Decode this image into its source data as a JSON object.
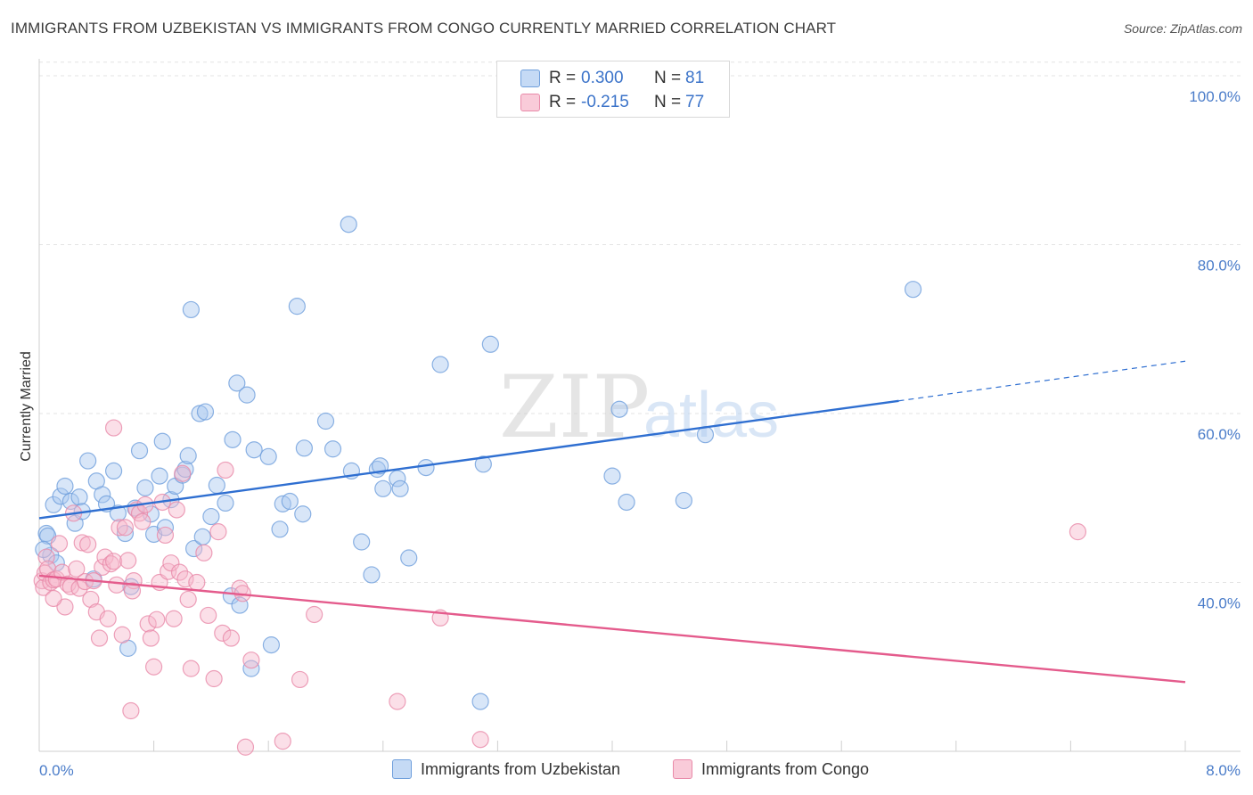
{
  "header": {
    "title": "IMMIGRANTS FROM UZBEKISTAN VS IMMIGRANTS FROM CONGO CURRENTLY MARRIED CORRELATION CHART",
    "source": "Source: ZipAtlas.com"
  },
  "watermark": {
    "zip": "ZIP",
    "atlas": "atlas"
  },
  "legend": {
    "r_label": "R =",
    "n_label": "N =",
    "series": [
      {
        "name": "Immigrants from Uzbekistan",
        "r": "0.300",
        "n": "81",
        "color": "#a9c8f0",
        "stroke": "#6f9fdc"
      },
      {
        "name": "Immigrants from Congo",
        "r": "-0.215",
        "n": "77",
        "color": "#f6b8cb",
        "stroke": "#e98aa9"
      }
    ]
  },
  "chart_data": {
    "type": "scatter",
    "title": "IMMIGRANTS FROM UZBEKISTAN VS IMMIGRANTS FROM CONGO CURRENTLY MARRIED CORRELATION CHART",
    "xlabel": "",
    "ylabel": "Currently Married",
    "xlim": [
      0,
      8
    ],
    "ylim": [
      20,
      102
    ],
    "x_tick_labels": [
      "0.0%",
      "8.0%"
    ],
    "y_ticks": [
      40,
      60,
      80,
      100
    ],
    "y_tick_labels": [
      "40.0%",
      "60.0%",
      "80.0%",
      "100.0%"
    ],
    "series": [
      {
        "name": "Immigrants from Uzbekistan",
        "color": "#a9c8f0",
        "stroke": "#6f9fdc",
        "trend_color": "#2f6fd1",
        "trend": {
          "x0": 0.0,
          "y0": 47.6,
          "x1": 6.0,
          "y1": 61.5,
          "dashed_to_x": 8.0,
          "dashed_to_y": 66.2
        },
        "points": [
          [
            0.05,
            45.8
          ],
          [
            0.06,
            45.5
          ],
          [
            0.08,
            43.2
          ],
          [
            0.1,
            49.2
          ],
          [
            0.12,
            42.3
          ],
          [
            0.15,
            50.2
          ],
          [
            0.18,
            51.4
          ],
          [
            0.22,
            49.6
          ],
          [
            0.25,
            47.0
          ],
          [
            0.28,
            50.1
          ],
          [
            0.3,
            48.4
          ],
          [
            0.34,
            54.4
          ],
          [
            0.38,
            40.4
          ],
          [
            0.4,
            52.0
          ],
          [
            0.44,
            50.4
          ],
          [
            0.47,
            49.3
          ],
          [
            0.52,
            53.2
          ],
          [
            0.55,
            48.2
          ],
          [
            0.6,
            45.8
          ],
          [
            0.62,
            32.2
          ],
          [
            0.64,
            39.5
          ],
          [
            0.67,
            48.8
          ],
          [
            0.7,
            55.6
          ],
          [
            0.74,
            51.2
          ],
          [
            0.78,
            48.1
          ],
          [
            0.8,
            45.7
          ],
          [
            0.84,
            52.6
          ],
          [
            0.86,
            56.7
          ],
          [
            0.88,
            46.5
          ],
          [
            0.92,
            49.8
          ],
          [
            0.95,
            51.4
          ],
          [
            1.0,
            52.7
          ],
          [
            1.02,
            53.4
          ],
          [
            1.04,
            55.0
          ],
          [
            1.06,
            72.3
          ],
          [
            1.08,
            44.0
          ],
          [
            1.12,
            60.0
          ],
          [
            1.14,
            45.4
          ],
          [
            1.16,
            60.2
          ],
          [
            1.2,
            47.8
          ],
          [
            1.24,
            51.5
          ],
          [
            1.3,
            49.4
          ],
          [
            1.34,
            38.4
          ],
          [
            1.35,
            56.9
          ],
          [
            1.38,
            63.6
          ],
          [
            1.4,
            37.3
          ],
          [
            1.45,
            62.2
          ],
          [
            1.48,
            29.8
          ],
          [
            1.5,
            55.7
          ],
          [
            1.6,
            54.9
          ],
          [
            1.62,
            32.6
          ],
          [
            1.68,
            46.3
          ],
          [
            1.7,
            49.3
          ],
          [
            1.75,
            49.6
          ],
          [
            1.8,
            72.7
          ],
          [
            1.84,
            48.1
          ],
          [
            1.85,
            55.9
          ],
          [
            2.0,
            59.1
          ],
          [
            2.05,
            55.8
          ],
          [
            2.16,
            82.4
          ],
          [
            2.18,
            53.2
          ],
          [
            2.25,
            44.8
          ],
          [
            2.32,
            40.9
          ],
          [
            2.36,
            53.4
          ],
          [
            2.38,
            53.8
          ],
          [
            2.4,
            51.1
          ],
          [
            2.5,
            52.3
          ],
          [
            2.52,
            51.1
          ],
          [
            2.58,
            42.9
          ],
          [
            2.7,
            53.6
          ],
          [
            2.8,
            65.8
          ],
          [
            3.08,
            25.9
          ],
          [
            3.1,
            54.0
          ],
          [
            3.15,
            68.2
          ],
          [
            4.0,
            52.6
          ],
          [
            4.05,
            60.5
          ],
          [
            4.1,
            49.5
          ],
          [
            4.5,
            49.7
          ],
          [
            4.65,
            57.5
          ],
          [
            6.1,
            74.7
          ],
          [
            0.03,
            43.9
          ]
        ]
      },
      {
        "name": "Immigrants from Congo",
        "color": "#f6b8cb",
        "stroke": "#e98aa9",
        "trend_color": "#e45b8c",
        "trend": {
          "x0": 0.0,
          "y0": 40.8,
          "x1": 8.0,
          "y1": 28.2
        },
        "points": [
          [
            0.02,
            40.2
          ],
          [
            0.03,
            39.4
          ],
          [
            0.04,
            41.1
          ],
          [
            0.05,
            43.0
          ],
          [
            0.06,
            41.6
          ],
          [
            0.08,
            40.0
          ],
          [
            0.1,
            40.3
          ],
          [
            0.12,
            40.4
          ],
          [
            0.14,
            44.6
          ],
          [
            0.16,
            41.2
          ],
          [
            0.18,
            37.1
          ],
          [
            0.2,
            39.8
          ],
          [
            0.22,
            39.5
          ],
          [
            0.24,
            48.2
          ],
          [
            0.26,
            41.6
          ],
          [
            0.28,
            39.3
          ],
          [
            0.3,
            44.7
          ],
          [
            0.32,
            40.1
          ],
          [
            0.34,
            44.5
          ],
          [
            0.36,
            38.0
          ],
          [
            0.38,
            40.2
          ],
          [
            0.4,
            36.5
          ],
          [
            0.42,
            33.4
          ],
          [
            0.44,
            41.8
          ],
          [
            0.46,
            43.0
          ],
          [
            0.48,
            35.7
          ],
          [
            0.5,
            42.2
          ],
          [
            0.52,
            42.5
          ],
          [
            0.52,
            58.3
          ],
          [
            0.54,
            39.7
          ],
          [
            0.56,
            46.5
          ],
          [
            0.58,
            33.8
          ],
          [
            0.6,
            46.5
          ],
          [
            0.62,
            42.6
          ],
          [
            0.64,
            24.8
          ],
          [
            0.66,
            40.2
          ],
          [
            0.68,
            48.6
          ],
          [
            0.7,
            48.2
          ],
          [
            0.72,
            47.2
          ],
          [
            0.74,
            49.2
          ],
          [
            0.76,
            35.1
          ],
          [
            0.78,
            33.4
          ],
          [
            0.8,
            30.0
          ],
          [
            0.82,
            35.6
          ],
          [
            0.84,
            40.0
          ],
          [
            0.86,
            49.5
          ],
          [
            0.88,
            45.6
          ],
          [
            0.9,
            41.3
          ],
          [
            0.92,
            42.3
          ],
          [
            0.94,
            35.7
          ],
          [
            0.96,
            48.6
          ],
          [
            0.98,
            41.2
          ],
          [
            1.0,
            52.9
          ],
          [
            1.02,
            40.4
          ],
          [
            1.04,
            38.0
          ],
          [
            1.06,
            29.8
          ],
          [
            1.1,
            40.0
          ],
          [
            1.15,
            43.5
          ],
          [
            1.18,
            36.1
          ],
          [
            1.22,
            28.6
          ],
          [
            1.25,
            46.0
          ],
          [
            1.28,
            34.0
          ],
          [
            1.3,
            53.3
          ],
          [
            1.34,
            33.4
          ],
          [
            1.4,
            39.3
          ],
          [
            1.42,
            38.7
          ],
          [
            1.44,
            20.5
          ],
          [
            1.48,
            30.8
          ],
          [
            1.7,
            21.2
          ],
          [
            1.82,
            28.5
          ],
          [
            1.92,
            36.2
          ],
          [
            2.5,
            25.9
          ],
          [
            2.8,
            35.8
          ],
          [
            3.08,
            21.4
          ],
          [
            7.25,
            46.0
          ],
          [
            0.65,
            39.0
          ],
          [
            0.1,
            38.1
          ]
        ]
      }
    ]
  }
}
